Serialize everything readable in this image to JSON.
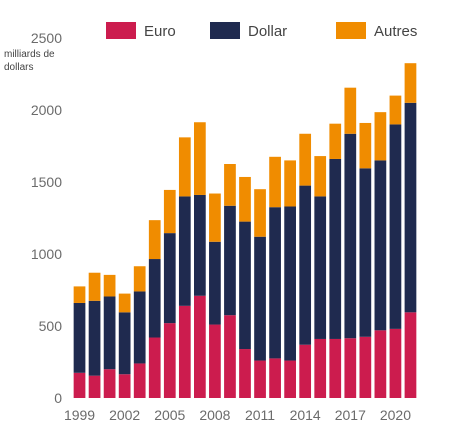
{
  "chart_data": {
    "type": "bar",
    "stacked": true,
    "ylabel": "milliards de\ndollars",
    "ylim": [
      0,
      2500
    ],
    "yticks": [
      "0",
      "500",
      "1000",
      "1500",
      "2000",
      "2500"
    ],
    "ytick_values": [
      0,
      500,
      1000,
      1500,
      2000,
      2500
    ],
    "xtick_labels": [
      "1999",
      "2002",
      "2005",
      "2008",
      "2011",
      "2014",
      "2017",
      "2020"
    ],
    "categories": [
      "1999",
      "2000",
      "2001",
      "2002",
      "2003",
      "2004",
      "2005",
      "2006",
      "2007",
      "2008",
      "2009",
      "2010",
      "2011",
      "2012",
      "2013",
      "2014",
      "2015",
      "2016",
      "2017",
      "2018",
      "2019",
      "2020",
      "2021"
    ],
    "legend_position": "top",
    "grid": false,
    "series": [
      {
        "name": "Euro",
        "color": "#cc1c4e",
        "values": [
          175,
          155,
          200,
          165,
          240,
          420,
          520,
          640,
          710,
          510,
          575,
          340,
          260,
          275,
          260,
          370,
          410,
          410,
          415,
          425,
          470,
          480,
          595
        ]
      },
      {
        "name": "Dollar",
        "color": "#1f2a4f",
        "values": [
          485,
          520,
          505,
          430,
          500,
          545,
          625,
          760,
          700,
          575,
          760,
          885,
          860,
          1050,
          1070,
          1105,
          990,
          1250,
          1420,
          1170,
          1180,
          1420,
          1455
        ]
      },
      {
        "name": "Autres",
        "color": "#f08c00",
        "values": [
          115,
          195,
          150,
          130,
          175,
          270,
          300,
          410,
          505,
          335,
          290,
          310,
          330,
          350,
          320,
          360,
          280,
          245,
          320,
          315,
          335,
          200,
          275
        ]
      }
    ]
  }
}
